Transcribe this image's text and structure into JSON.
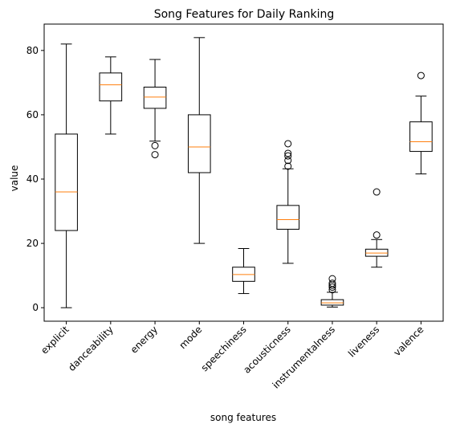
{
  "chart_data": {
    "type": "box",
    "title": "Song Features for Daily Ranking",
    "xlabel": "song features",
    "ylabel": "value",
    "ylim": [
      -4.2,
      88.2
    ],
    "yticks": [
      0,
      20,
      40,
      60,
      80
    ],
    "xtick_rotation_deg": 45,
    "colors": {
      "box": "#000000",
      "median": "#ff7f0e",
      "outlier": "#000000"
    },
    "categories": [
      "explicit",
      "danceability",
      "energy",
      "mode",
      "speechiness",
      "acousticness",
      "instrumentalness",
      "liveness",
      "valence"
    ],
    "boxes": [
      {
        "label": "explicit",
        "whislo": 0,
        "q1": 24,
        "med": 36,
        "q3": 54,
        "whishi": 82,
        "fliers": []
      },
      {
        "label": "danceability",
        "whislo": 54,
        "q1": 64.3,
        "med": 69.3,
        "q3": 73,
        "whishi": 78,
        "fliers": []
      },
      {
        "label": "energy",
        "whislo": 51.8,
        "q1": 62,
        "med": 65.5,
        "q3": 68.6,
        "whishi": 77.2,
        "fliers": [
          50.4,
          47.6
        ]
      },
      {
        "label": "mode",
        "whislo": 20,
        "q1": 42,
        "med": 50,
        "q3": 60,
        "whishi": 84,
        "fliers": []
      },
      {
        "label": "speechiness",
        "whislo": 4.4,
        "q1": 8.2,
        "med": 10.3,
        "q3": 12.6,
        "whishi": 18.4,
        "fliers": []
      },
      {
        "label": "acousticness",
        "whislo": 13.8,
        "q1": 24.4,
        "med": 27.4,
        "q3": 31.8,
        "whishi": 43.2,
        "fliers": [
          44,
          45.8,
          47.2,
          48,
          51
        ]
      },
      {
        "label": "instrumentalness",
        "whislo": 0.2,
        "q1": 0.8,
        "med": 1.5,
        "q3": 2.5,
        "whishi": 4.8,
        "fliers": [
          5.6,
          6.4,
          7.0,
          7.6,
          9.0
        ]
      },
      {
        "label": "liveness",
        "whislo": 12.6,
        "q1": 16,
        "med": 17,
        "q3": 18.2,
        "whishi": 21.2,
        "fliers": [
          22.6,
          36
        ]
      },
      {
        "label": "valence",
        "whislo": 41.6,
        "q1": 48.6,
        "med": 51.6,
        "q3": 57.8,
        "whishi": 65.8,
        "fliers": [
          72.2
        ]
      }
    ]
  }
}
